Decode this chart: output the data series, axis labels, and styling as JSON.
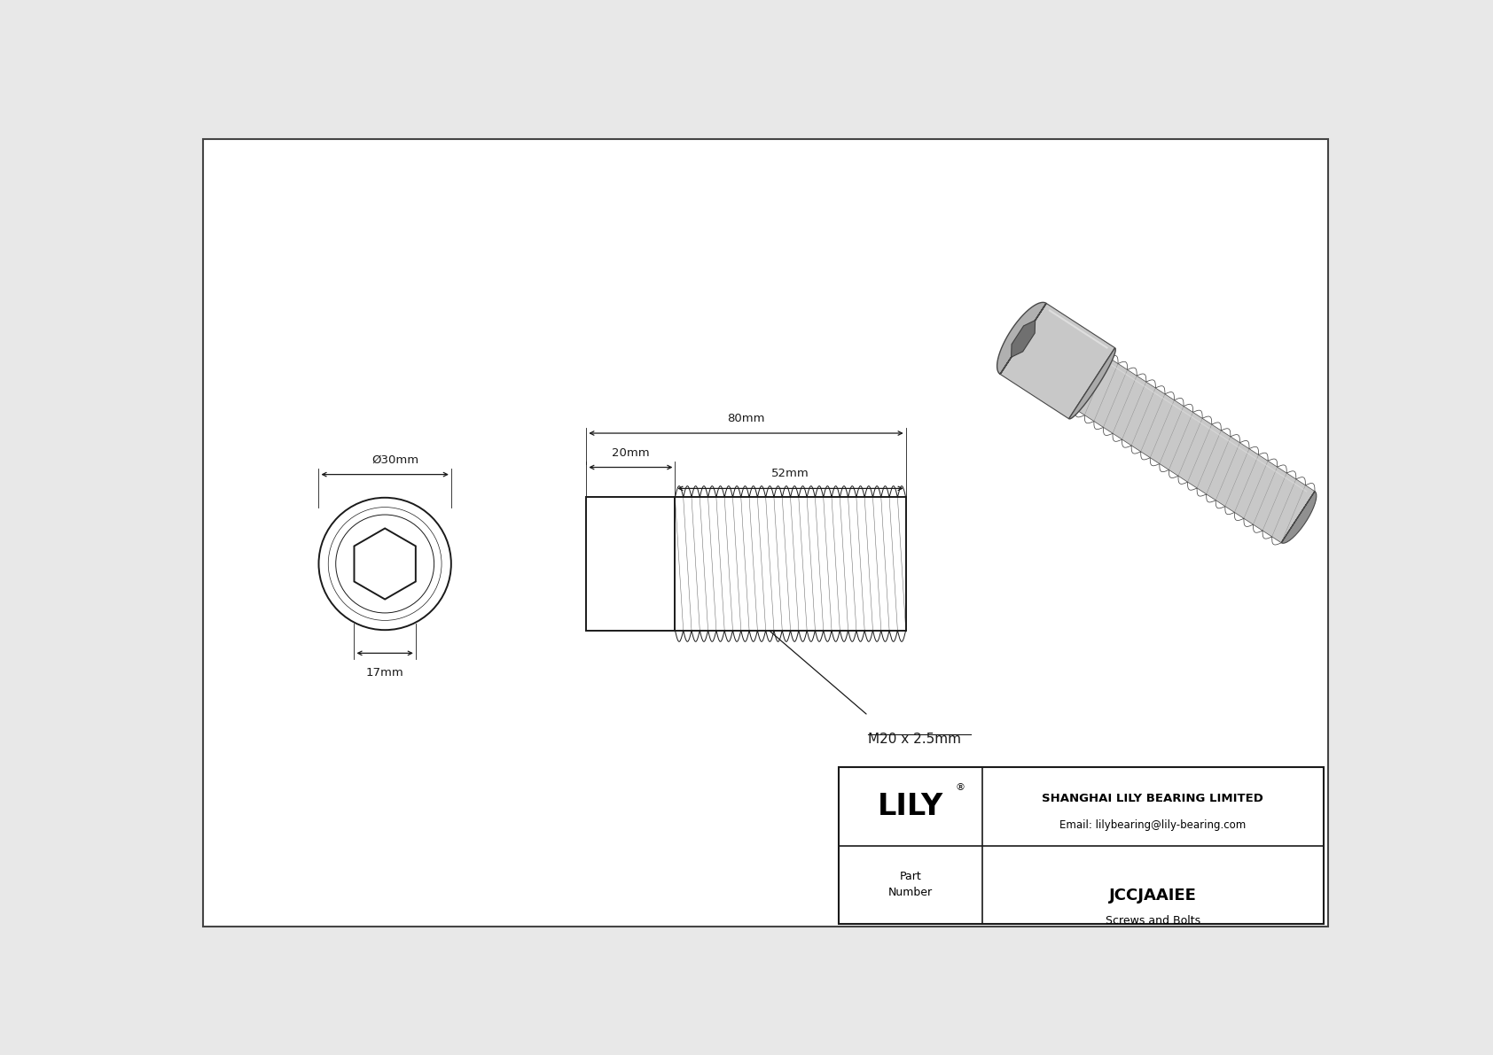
{
  "bg_color": "#e8e8e8",
  "inner_bg": "#ffffff",
  "border_color": "#555555",
  "line_color": "#1a1a1a",
  "dim_color": "#1a1a1a",
  "title": "JCCJAAIEE",
  "subtitle": "Screws and Bolts",
  "company": "SHANGHAI LILY BEARING LIMITED",
  "email": "Email: lilybearing@lily-bearing.com",
  "logo": "LILY",
  "part_label": "Part\nNumber",
  "thread_label": "M20 x 2.5mm",
  "dim_30mm": "Ø30mm",
  "dim_17mm": "17mm",
  "dim_20mm": "20mm",
  "dim_80mm": "80mm",
  "dim_52mm": "52mm",
  "figw": 16.84,
  "figh": 11.91
}
